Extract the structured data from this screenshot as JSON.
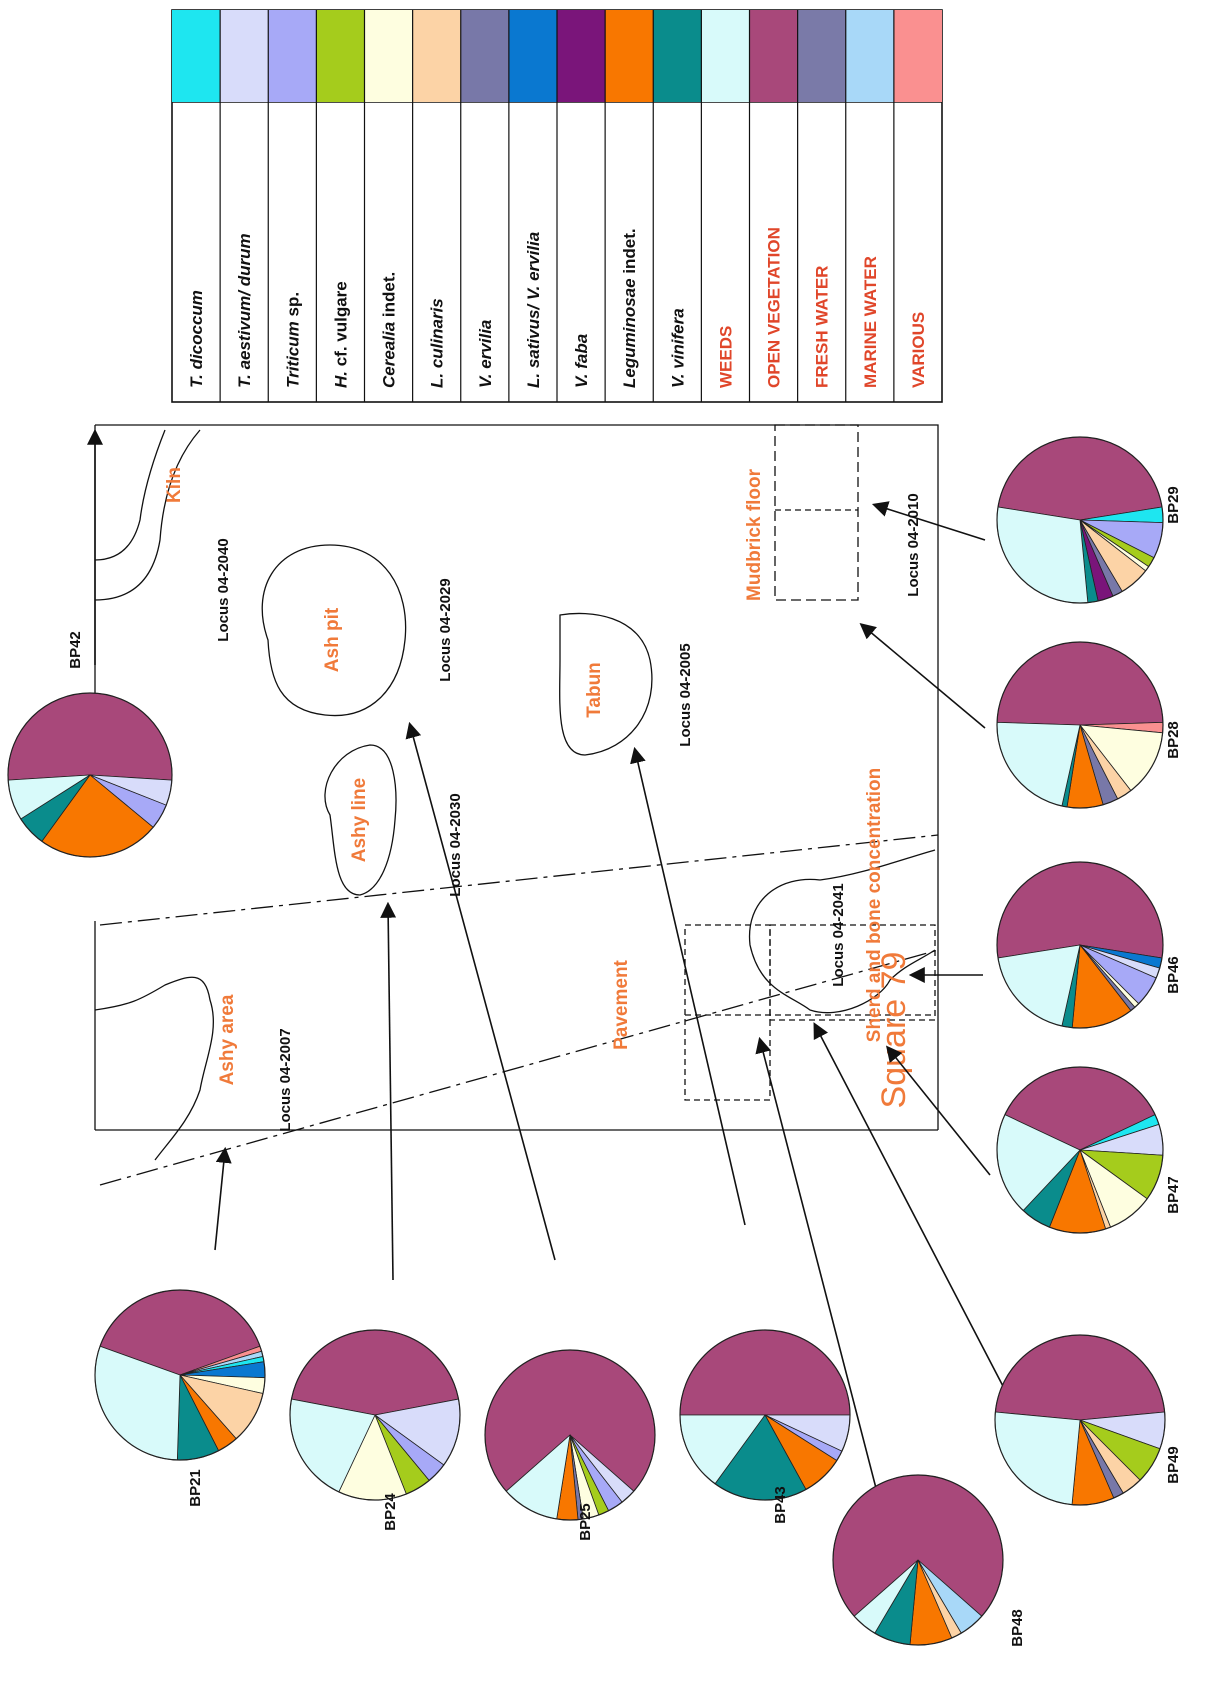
{
  "legend": [
    {
      "label": "T. dicoccum",
      "italic": "T. dicoccum",
      "rest": "",
      "color": "#1ee6f0",
      "group": "taxon"
    },
    {
      "label": "T. aestivum/ durum",
      "italic": "T. aestivum/ durum",
      "rest": "",
      "color": "#d8dcfa",
      "group": "taxon"
    },
    {
      "label": "Triticum sp.",
      "italic": "Triticum",
      "rest": " sp.",
      "color": "#a7a9f7",
      "group": "taxon"
    },
    {
      "label": "H. cf. vulgare",
      "italic": "H.",
      "rest": " cf. vulgare",
      "color": "#a5cc1c",
      "group": "taxon"
    },
    {
      "label": "Cerealia indet.",
      "italic": "Cerealia",
      "rest": " indet.",
      "color": "#fefee0",
      "group": "taxon"
    },
    {
      "label": "L. culinaris",
      "italic": "L. culinaris",
      "rest": "",
      "color": "#fcd3a6",
      "group": "taxon"
    },
    {
      "label": "V. ervilia",
      "italic": "V. ervilia",
      "rest": "",
      "color": "#7878a8",
      "group": "taxon"
    },
    {
      "label": "L. sativus/ V. ervilia",
      "italic": "L. sativus/ V. ervilia",
      "rest": "",
      "color": "#0a78d0",
      "group": "taxon"
    },
    {
      "label": "V. faba",
      "italic": "V. faba",
      "rest": "",
      "color": "#7a157a",
      "group": "taxon"
    },
    {
      "label": "Leguminosae indet.",
      "italic": "Leguminosae",
      "rest": " indet.",
      "color": "#f87700",
      "group": "taxon"
    },
    {
      "label": "V. vinifera",
      "italic": "V. vinifera",
      "rest": "",
      "color": "#0a8c8c",
      "group": "taxon"
    },
    {
      "label": "WEEDS",
      "italic": "",
      "rest": "WEEDS",
      "color": "#d8fafa",
      "group": "ecology"
    },
    {
      "label": "OPEN VEGETATION",
      "italic": "",
      "rest": "OPEN VEGETATION",
      "color": "#a8487a",
      "group": "ecology"
    },
    {
      "label": "FRESH WATER",
      "italic": "",
      "rest": "FRESH WATER",
      "color": "#7a7aa8",
      "group": "ecology"
    },
    {
      "label": "MARINE WATER",
      "italic": "",
      "rest": "MARINE WATER",
      "color": "#a8d8f8",
      "group": "ecology"
    },
    {
      "label": "VARIOUS",
      "italic": "",
      "rest": "VARIOUS",
      "color": "#fa9090",
      "group": "ecology"
    }
  ],
  "plan": {
    "square": "Square 79",
    "features": {
      "ashy_area": "Ashy area",
      "ashy_line": "Ashy line",
      "ash_pit": "Ash pit",
      "kiln": "Kiln",
      "tabun": "Tabun",
      "pavement": "Pavement",
      "sherd_bone": "Sherd and bone concentration",
      "mudbrick": "Mudbrick floor"
    },
    "loci": {
      "l2007": "Locus 04-2007",
      "l2030": "Locus 04-2030",
      "l2029": "Locus 04-2029",
      "l2040": "Locus 04-2040",
      "l2005": "Locus 04-2005",
      "l2041": "Locus 04-2041",
      "l2010": "Locus 04-2010"
    },
    "label_color": "#f07a3a"
  },
  "chart_data": {
    "type": "pie",
    "categories": [
      "T. dicoccum",
      "T. aestivum/ durum",
      "Triticum sp.",
      "H. cf. vulgare",
      "Cerealia indet.",
      "L. culinaris",
      "V. ervilia",
      "L. sativus/ V. ervilia",
      "V. faba",
      "Leguminosae indet.",
      "V. vinifera",
      "WEEDS",
      "OPEN VEGETATION",
      "FRESH WATER",
      "MARINE WATER",
      "VARIOUS"
    ],
    "samples": [
      {
        "name": "BP42",
        "values": {
          "OPEN VEGETATION": 52,
          "T. aestivum/ durum": 5,
          "Triticum sp.": 5,
          "Leguminosae indet.": 24,
          "V. vinifera": 6,
          "WEEDS": 8
        }
      },
      {
        "name": "BP21",
        "values": {
          "OPEN VEGETATION": 39,
          "L. sativus/ V. ervilia": 3,
          "VARIOUS": 1,
          "MARINE WATER": 1,
          "T. dicoccum": 1,
          "Cerealia indet.": 3,
          "L. culinaris": 10,
          "Leguminosae indet.": 4,
          "V. vinifera": 8,
          "WEEDS": 30
        }
      },
      {
        "name": "BP24",
        "values": {
          "OPEN VEGETATION": 44,
          "T. aestivum/ durum": 13,
          "Triticum sp.": 4,
          "H. cf. vulgare": 5,
          "Cerealia indet.": 13,
          "WEEDS": 21
        }
      },
      {
        "name": "BP25",
        "values": {
          "OPEN VEGETATION": 73,
          "T. aestivum/ durum": 3,
          "Triticum sp.": 3,
          "H. cf. vulgare": 2,
          "Cerealia indet.": 3,
          "V. ervilia": 1,
          "Leguminosae indet.": 4,
          "WEEDS": 11
        }
      },
      {
        "name": "BP43",
        "values": {
          "OPEN VEGETATION": 50,
          "T. aestivum/ durum": 7,
          "Triticum sp.": 2,
          "Leguminosae indet.": 8,
          "V. vinifera": 18,
          "WEEDS": 15
        }
      },
      {
        "name": "BP48",
        "values": {
          "OPEN VEGETATION": 73,
          "L. culinaris": 2,
          "Leguminosae indet.": 8,
          "V. vinifera": 7,
          "WEEDS": 5,
          "MARINE WATER": 5
        }
      },
      {
        "name": "BP49",
        "values": {
          "OPEN VEGETATION": 47,
          "T. aestivum/ durum": 7,
          "H. cf. vulgare": 7,
          "L. culinaris": 4,
          "V. ervilia": 2,
          "Leguminosae indet.": 8,
          "WEEDS": 25
        }
      },
      {
        "name": "BP47",
        "values": {
          "OPEN VEGETATION": 36,
          "T. dicoccum": 2,
          "T. aestivum/ durum": 6,
          "H. cf. vulgare": 9,
          "Cerealia indet.": 9,
          "L. culinaris": 1,
          "Leguminosae indet.": 11,
          "V. vinifera": 6,
          "WEEDS": 20
        }
      },
      {
        "name": "BP46",
        "values": {
          "OPEN VEGETATION": 55,
          "T. aestivum/ durum": 2,
          "Triticum sp.": 6,
          "L. sativus/ V. ervilia": 2,
          "V. ervilia": 1,
          "Cerealia indet.": 1,
          "Leguminosae indet.": 12,
          "V. vinifera": 2,
          "WEEDS": 19
        }
      },
      {
        "name": "BP28",
        "values": {
          "OPEN VEGETATION": 49,
          "VARIOUS": 2,
          "Cerealia indet.": 13,
          "L. culinaris": 3,
          "V. ervilia": 3,
          "Leguminosae indet.": 7,
          "V. vinifera": 1,
          "WEEDS": 22
        }
      },
      {
        "name": "BP29",
        "values": {
          "OPEN VEGETATION": 45,
          "T. dicoccum": 3,
          "Triticum sp.": 7,
          "H. cf. vulgare": 2,
          "Cerealia indet.": 1,
          "L. culinaris": 6,
          "V. ervilia": 2,
          "V. faba": 3,
          "V. vinifera": 2,
          "WEEDS": 29
        }
      }
    ]
  }
}
